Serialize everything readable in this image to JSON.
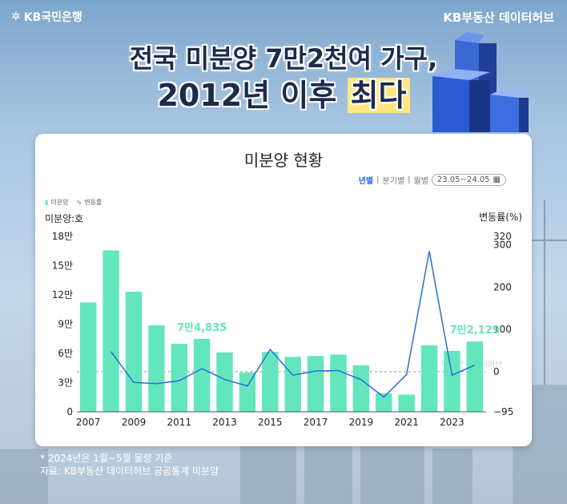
{
  "brand": {
    "left_logo": "KB국민은행",
    "right_logo": "KB부동산 데이터허브"
  },
  "headline": {
    "line1": "전국 미분양 7만2천여 가구,",
    "line2_prefix": "2012년 이후",
    "line2_highlight": "최다"
  },
  "card": {
    "title": "미분양 현황",
    "filters": {
      "yearly": "년별",
      "quarterly": "분기별",
      "monthly": "월별",
      "period": "23.05~24.05"
    }
  },
  "footer": {
    "note1": "* 2024년은 1월~5월 물량 기준",
    "note2": "자료: KB부동산 데이터허브 공공통계 미분양"
  },
  "colors": {
    "bar": "#63e6be",
    "line": "#2f6bd4",
    "highlight": "#ffe680",
    "navy": "#1e2a4a"
  },
  "chart_data": {
    "type": "bar",
    "legend": {
      "bar": "미분양",
      "line": "변동률"
    },
    "ylabel_left": "미분양:호",
    "ylabel_right": "변동률(%)",
    "left_ticks": [
      "0",
      "3만",
      "6만",
      "9만",
      "12만",
      "15만",
      "18만"
    ],
    "right_ticks": [
      "−95",
      "0",
      "100",
      "200",
      "300",
      "320"
    ],
    "x_ticks": [
      "2007",
      "2009",
      "2011",
      "2013",
      "2015",
      "2017",
      "2019",
      "2021",
      "2023"
    ],
    "years": [
      2007,
      2008,
      2009,
      2010,
      2011,
      2012,
      2013,
      2014,
      2015,
      2016,
      2017,
      2018,
      2019,
      2020,
      2021,
      2022,
      2023,
      2024
    ],
    "units": [
      112254,
      165599,
      123297,
      88706,
      69807,
      74835,
      61091,
      40379,
      61512,
      56413,
      57330,
      58838,
      47797,
      19005,
      17710,
      68148,
      62489,
      72129
    ],
    "change_pct": [
      null,
      47.5,
      -25.5,
      -28.1,
      -21.3,
      7.2,
      -18.4,
      -33.9,
      52.3,
      -8.3,
      1.6,
      2.6,
      -18.8,
      -60.2,
      -6.8,
      284.8,
      -8.3,
      15.4
    ],
    "annotations": [
      {
        "year": 2012,
        "label": "7만4,835"
      },
      {
        "year": 2024,
        "label": "7만2,129"
      }
    ],
    "watermark": "KB 부동산 데이터허브",
    "ylim_left": [
      0,
      180000
    ],
    "ylim_right": [
      -95,
      320
    ]
  }
}
